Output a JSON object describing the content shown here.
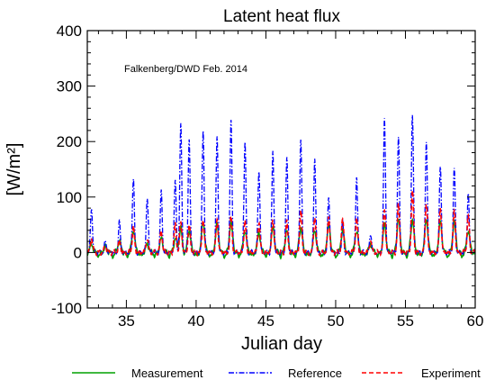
{
  "chart_data": {
    "type": "line",
    "title": "Latent heat flux",
    "xlabel": "Julian day",
    "ylabel": "[W/m²]",
    "annotation": "Falkenberg/DWD   Feb. 2014",
    "xlim": [
      32.2,
      60
    ],
    "ylim": [
      -100,
      400
    ],
    "x_ticks": [
      35,
      40,
      45,
      50,
      55,
      60
    ],
    "y_ticks": [
      -100,
      0,
      100,
      200,
      300,
      400
    ],
    "x_tick_labels": [
      "35",
      "40",
      "45",
      "50",
      "55",
      "60"
    ],
    "y_tick_labels": [
      "-100",
      "0",
      "100",
      "200",
      "300",
      "400"
    ],
    "grid": false,
    "legend_position": "bottom",
    "series": [
      {
        "name": "Measurement",
        "color": "#00a000",
        "style": "solid",
        "daily_peaks": [
          [
            32.5,
            15
          ],
          [
            33.5,
            10
          ],
          [
            34.5,
            20
          ],
          [
            35.5,
            40
          ],
          [
            36.5,
            15
          ],
          [
            37.5,
            25
          ],
          [
            38.5,
            30
          ],
          [
            38.9,
            45
          ],
          [
            39.5,
            40
          ],
          [
            40.5,
            55
          ],
          [
            41.5,
            50
          ],
          [
            42.5,
            55
          ],
          [
            43.5,
            40
          ],
          [
            44.5,
            35
          ],
          [
            45.5,
            45
          ],
          [
            46.5,
            40
          ],
          [
            47.5,
            45
          ],
          [
            48.5,
            40
          ],
          [
            49.5,
            50
          ],
          [
            50.5,
            40
          ],
          [
            51.5,
            40
          ],
          [
            52.5,
            15
          ],
          [
            53.5,
            50
          ],
          [
            54.5,
            60
          ],
          [
            55.5,
            60
          ],
          [
            56.5,
            60
          ],
          [
            57.5,
            55
          ],
          [
            58.5,
            55
          ],
          [
            59.5,
            40
          ]
        ]
      },
      {
        "name": "Reference",
        "color": "#0000ff",
        "style": "dashdot",
        "daily_peaks": [
          [
            32.5,
            80
          ],
          [
            33.5,
            20
          ],
          [
            34.5,
            55
          ],
          [
            35.5,
            135
          ],
          [
            36.5,
            100
          ],
          [
            37.5,
            110
          ],
          [
            38.5,
            130
          ],
          [
            38.9,
            230
          ],
          [
            39.5,
            205
          ],
          [
            40.5,
            220
          ],
          [
            41.5,
            210
          ],
          [
            42.5,
            235
          ],
          [
            43.5,
            200
          ],
          [
            44.5,
            150
          ],
          [
            45.5,
            180
          ],
          [
            46.5,
            170
          ],
          [
            47.5,
            205
          ],
          [
            48.5,
            170
          ],
          [
            49.5,
            100
          ],
          [
            50.5,
            55
          ],
          [
            51.5,
            135
          ],
          [
            52.5,
            35
          ],
          [
            53.5,
            240
          ],
          [
            54.5,
            205
          ],
          [
            55.5,
            250
          ],
          [
            56.5,
            200
          ],
          [
            57.5,
            155
          ],
          [
            58.5,
            150
          ],
          [
            59.5,
            105
          ]
        ]
      },
      {
        "name": "Experiment",
        "color": "#ff0000",
        "style": "dashed",
        "daily_peaks": [
          [
            32.5,
            25
          ],
          [
            33.5,
            12
          ],
          [
            34.5,
            20
          ],
          [
            35.5,
            45
          ],
          [
            36.5,
            25
          ],
          [
            37.5,
            40
          ],
          [
            38.5,
            50
          ],
          [
            38.9,
            55
          ],
          [
            39.5,
            50
          ],
          [
            40.5,
            60
          ],
          [
            41.5,
            60
          ],
          [
            42.5,
            65
          ],
          [
            43.5,
            55
          ],
          [
            44.5,
            55
          ],
          [
            45.5,
            60
          ],
          [
            46.5,
            55
          ],
          [
            47.5,
            75
          ],
          [
            48.5,
            65
          ],
          [
            49.5,
            65
          ],
          [
            50.5,
            60
          ],
          [
            51.5,
            60
          ],
          [
            52.5,
            20
          ],
          [
            53.5,
            80
          ],
          [
            54.5,
            85
          ],
          [
            55.5,
            110
          ],
          [
            56.5,
            90
          ],
          [
            57.5,
            80
          ],
          [
            58.5,
            75
          ],
          [
            59.5,
            65
          ]
        ]
      }
    ]
  }
}
